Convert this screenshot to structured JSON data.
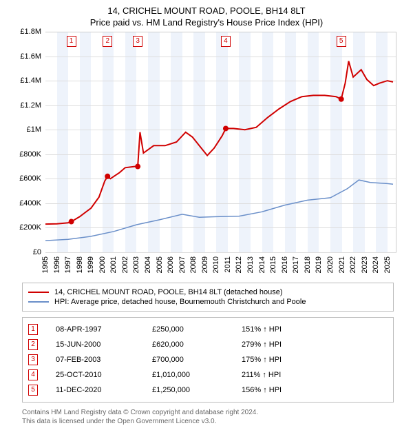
{
  "title": {
    "line1": "14, CRICHEL MOUNT ROAD, POOLE, BH14 8LT",
    "line2": "Price paid vs. HM Land Registry's House Price Index (HPI)"
  },
  "chart": {
    "type": "line",
    "background_color": "#ffffff",
    "band_color": "#eef3fb",
    "grid_color": "#dddddd",
    "border_color": "#cccccc",
    "x_range": [
      1995,
      2025.8
    ],
    "y_range": [
      0,
      1800000
    ],
    "y_ticks": [
      0,
      200000,
      400000,
      600000,
      800000,
      1000000,
      1200000,
      1400000,
      1600000,
      1800000
    ],
    "y_tick_labels": [
      "£0",
      "£200K",
      "£400K",
      "£600K",
      "£800K",
      "£1M",
      "£1.2M",
      "£1.4M",
      "£1.6M",
      "£1.8M"
    ],
    "x_ticks": [
      1995,
      1996,
      1997,
      1998,
      1999,
      2000,
      2001,
      2002,
      2003,
      2004,
      2005,
      2006,
      2007,
      2008,
      2009,
      2010,
      2011,
      2012,
      2013,
      2014,
      2015,
      2016,
      2017,
      2018,
      2019,
      2020,
      2021,
      2022,
      2023,
      2024,
      2025
    ],
    "label_fontsize": 11,
    "line_width_primary": 2,
    "line_width_secondary": 1.5,
    "primary_color": "#d00000",
    "secondary_color": "#6a8fc9",
    "marker_border": "#d00000",
    "series_primary": {
      "name": "14, CRICHEL MOUNT ROAD, POOLE, BH14 8LT (detached house)",
      "points": [
        [
          1995.0,
          230000
        ],
        [
          1996.0,
          232000
        ],
        [
          1997.0,
          240000
        ],
        [
          1997.27,
          250000
        ],
        [
          1998.0,
          290000
        ],
        [
          1999.0,
          360000
        ],
        [
          1999.7,
          450000
        ],
        [
          2000.2,
          580000
        ],
        [
          2000.45,
          620000
        ],
        [
          2000.7,
          600000
        ],
        [
          2001.5,
          650000
        ],
        [
          2002.0,
          690000
        ],
        [
          2002.8,
          700000
        ],
        [
          2003.1,
          700000
        ],
        [
          2003.3,
          980000
        ],
        [
          2003.6,
          810000
        ],
        [
          2004.5,
          870000
        ],
        [
          2005.5,
          870000
        ],
        [
          2006.5,
          900000
        ],
        [
          2007.3,
          980000
        ],
        [
          2007.9,
          940000
        ],
        [
          2008.5,
          870000
        ],
        [
          2009.2,
          790000
        ],
        [
          2009.8,
          850000
        ],
        [
          2010.5,
          950000
        ],
        [
          2010.82,
          1010000
        ],
        [
          2011.5,
          1010000
        ],
        [
          2012.5,
          1000000
        ],
        [
          2013.5,
          1020000
        ],
        [
          2014.5,
          1100000
        ],
        [
          2015.5,
          1170000
        ],
        [
          2016.5,
          1230000
        ],
        [
          2017.5,
          1270000
        ],
        [
          2018.5,
          1280000
        ],
        [
          2019.5,
          1280000
        ],
        [
          2020.5,
          1270000
        ],
        [
          2020.95,
          1250000
        ],
        [
          2021.3,
          1380000
        ],
        [
          2021.6,
          1560000
        ],
        [
          2022.0,
          1430000
        ],
        [
          2022.7,
          1490000
        ],
        [
          2023.2,
          1410000
        ],
        [
          2023.8,
          1360000
        ],
        [
          2024.3,
          1380000
        ],
        [
          2025.0,
          1400000
        ],
        [
          2025.5,
          1390000
        ]
      ]
    },
    "series_secondary": {
      "name": "HPI: Average price, detached house, Bournemouth Christchurch and Poole",
      "points": [
        [
          1995.0,
          95000
        ],
        [
          1997.0,
          105000
        ],
        [
          1999.0,
          130000
        ],
        [
          2001.0,
          170000
        ],
        [
          2003.0,
          225000
        ],
        [
          2005.0,
          265000
        ],
        [
          2007.0,
          310000
        ],
        [
          2008.5,
          285000
        ],
        [
          2010.0,
          290000
        ],
        [
          2012.0,
          295000
        ],
        [
          2014.0,
          330000
        ],
        [
          2016.0,
          385000
        ],
        [
          2018.0,
          425000
        ],
        [
          2020.0,
          445000
        ],
        [
          2021.5,
          520000
        ],
        [
          2022.5,
          590000
        ],
        [
          2023.5,
          570000
        ],
        [
          2025.0,
          560000
        ],
        [
          2025.5,
          555000
        ]
      ]
    },
    "sale_markers": [
      {
        "n": "1",
        "x": 1997.27,
        "y": 250000
      },
      {
        "n": "2",
        "x": 2000.45,
        "y": 620000
      },
      {
        "n": "3",
        "x": 2003.1,
        "y": 700000
      },
      {
        "n": "4",
        "x": 2010.82,
        "y": 1010000
      },
      {
        "n": "5",
        "x": 2020.95,
        "y": 1250000
      }
    ]
  },
  "legend": {
    "items": [
      {
        "color": "#d00000",
        "label": "14, CRICHEL MOUNT ROAD, POOLE, BH14 8LT (detached house)"
      },
      {
        "color": "#6a8fc9",
        "label": "HPI: Average price, detached house, Bournemouth Christchurch and Poole"
      }
    ]
  },
  "transactions": [
    {
      "n": "1",
      "date": "08-APR-1997",
      "price": "£250,000",
      "vs_hpi": "151% ↑ HPI"
    },
    {
      "n": "2",
      "date": "15-JUN-2000",
      "price": "£620,000",
      "vs_hpi": "279% ↑ HPI"
    },
    {
      "n": "3",
      "date": "07-FEB-2003",
      "price": "£700,000",
      "vs_hpi": "175% ↑ HPI"
    },
    {
      "n": "4",
      "date": "25-OCT-2010",
      "price": "£1,010,000",
      "vs_hpi": "211% ↑ HPI"
    },
    {
      "n": "5",
      "date": "11-DEC-2020",
      "price": "£1,250,000",
      "vs_hpi": "156% ↑ HPI"
    }
  ],
  "footer": {
    "line1": "Contains HM Land Registry data © Crown copyright and database right 2024.",
    "line2": "This data is licensed under the Open Government Licence v3.0."
  }
}
